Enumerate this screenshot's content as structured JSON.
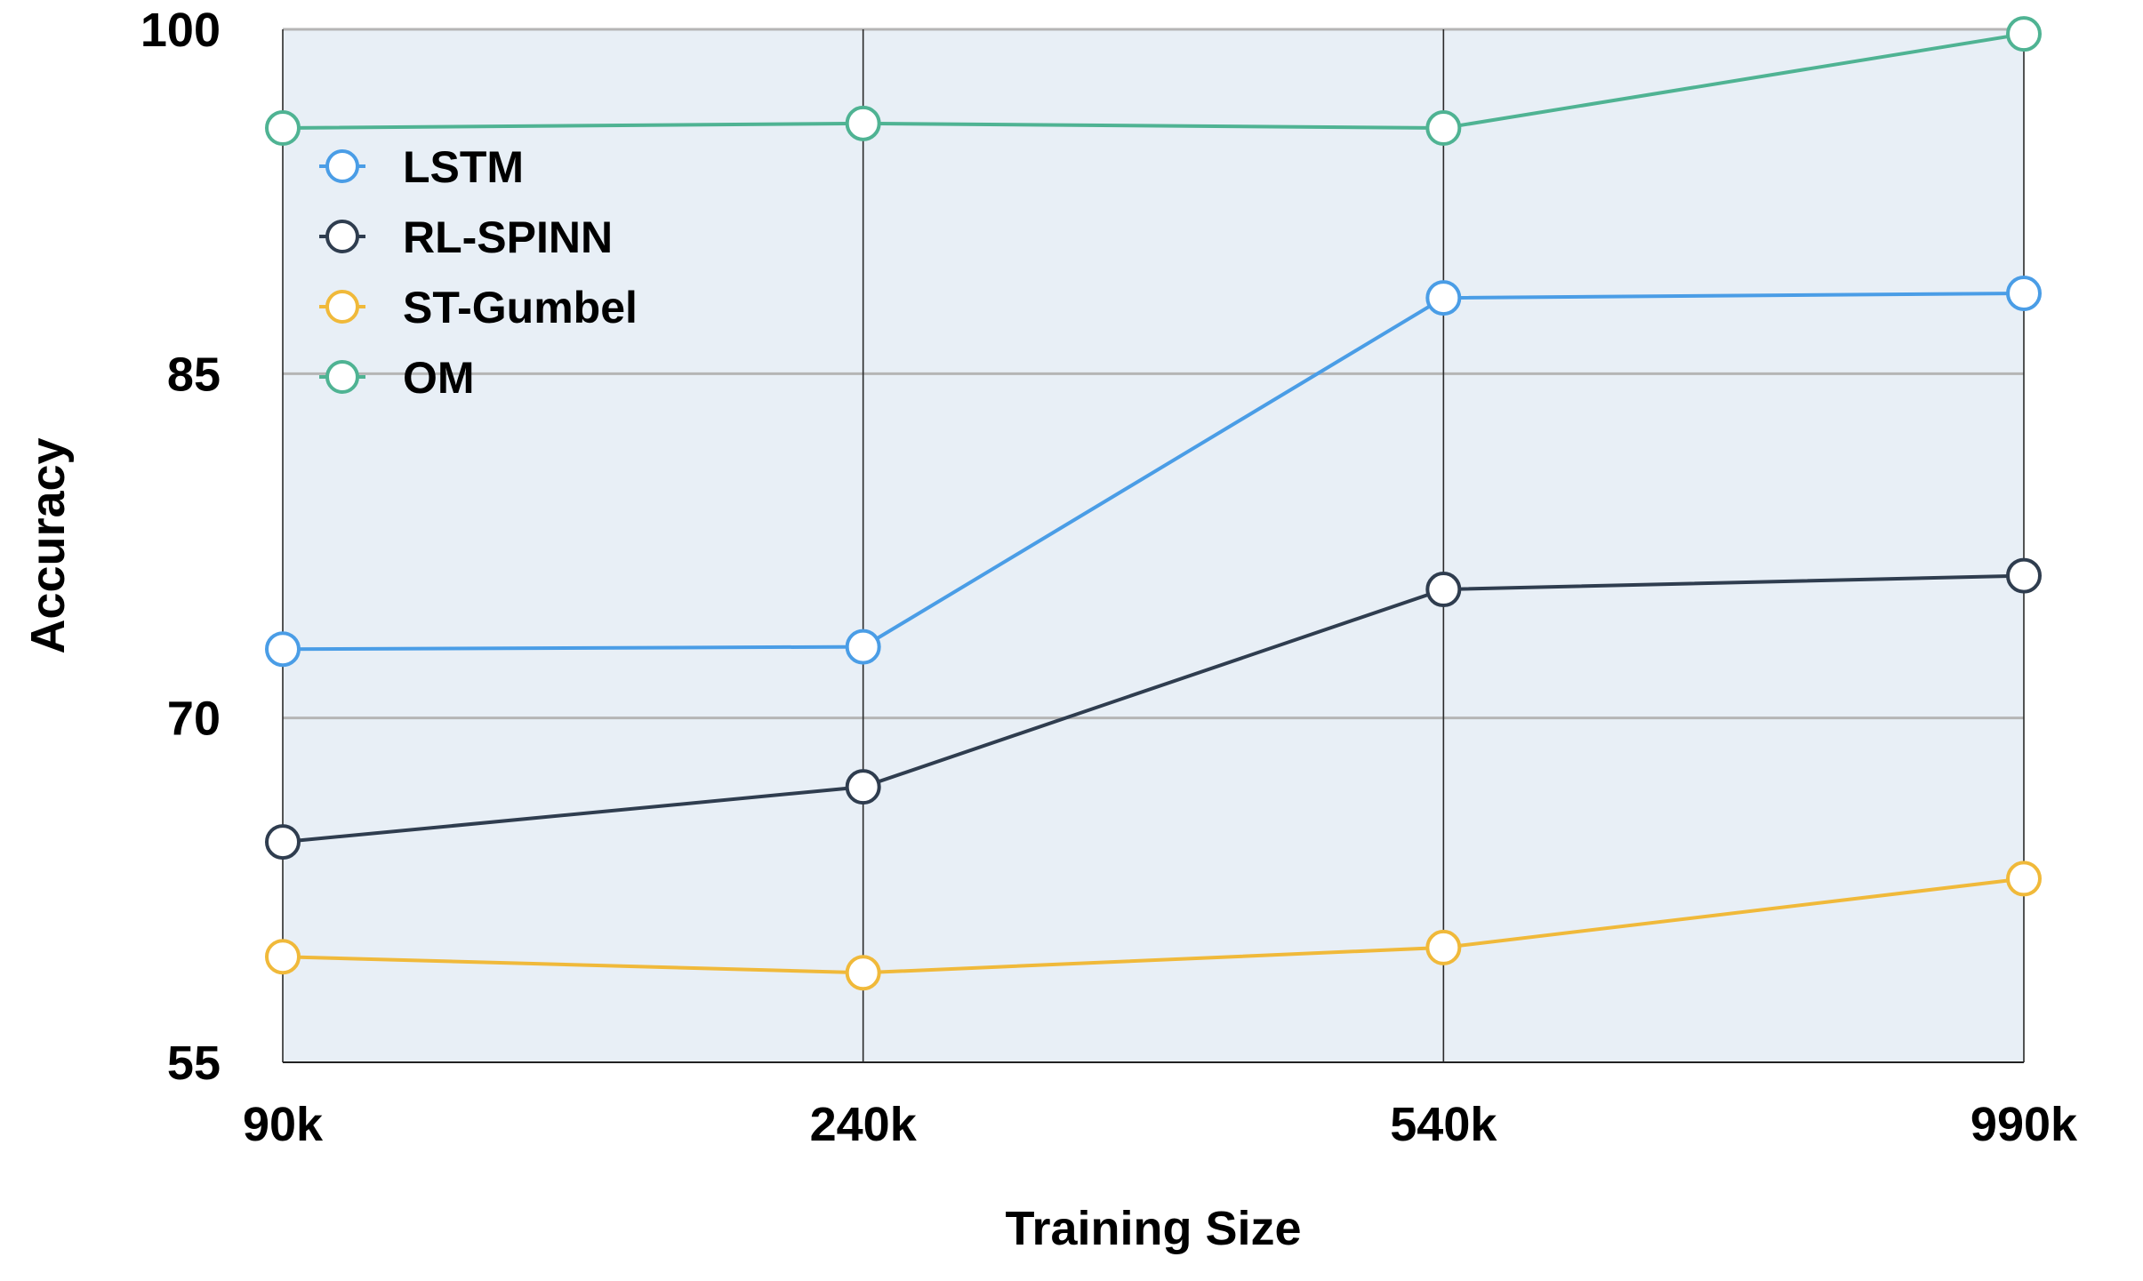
{
  "chart_data": {
    "type": "line",
    "title": "",
    "xlabel": "Training Size",
    "ylabel": "Accuracy",
    "categories": [
      "90k",
      "240k",
      "540k",
      "990k"
    ],
    "ylim": [
      55,
      100
    ],
    "yticks": [
      55,
      70,
      85,
      100
    ],
    "grid": true,
    "legend_position": "top-left",
    "plot_background": "#e8eff6",
    "series": [
      {
        "name": "LSTM",
        "color": "#4a9de6",
        "values": [
          73.0,
          73.1,
          88.3,
          88.5
        ]
      },
      {
        "name": "RL-SPINN",
        "color": "#2f3d4f",
        "values": [
          64.6,
          67.0,
          75.6,
          76.2
        ]
      },
      {
        "name": "ST-Gumbel",
        "color": "#f0b93a",
        "values": [
          59.6,
          58.9,
          60.0,
          63.0
        ]
      },
      {
        "name": "OM",
        "color": "#4fb393",
        "values": [
          95.7,
          95.9,
          95.7,
          99.8
        ]
      }
    ]
  }
}
